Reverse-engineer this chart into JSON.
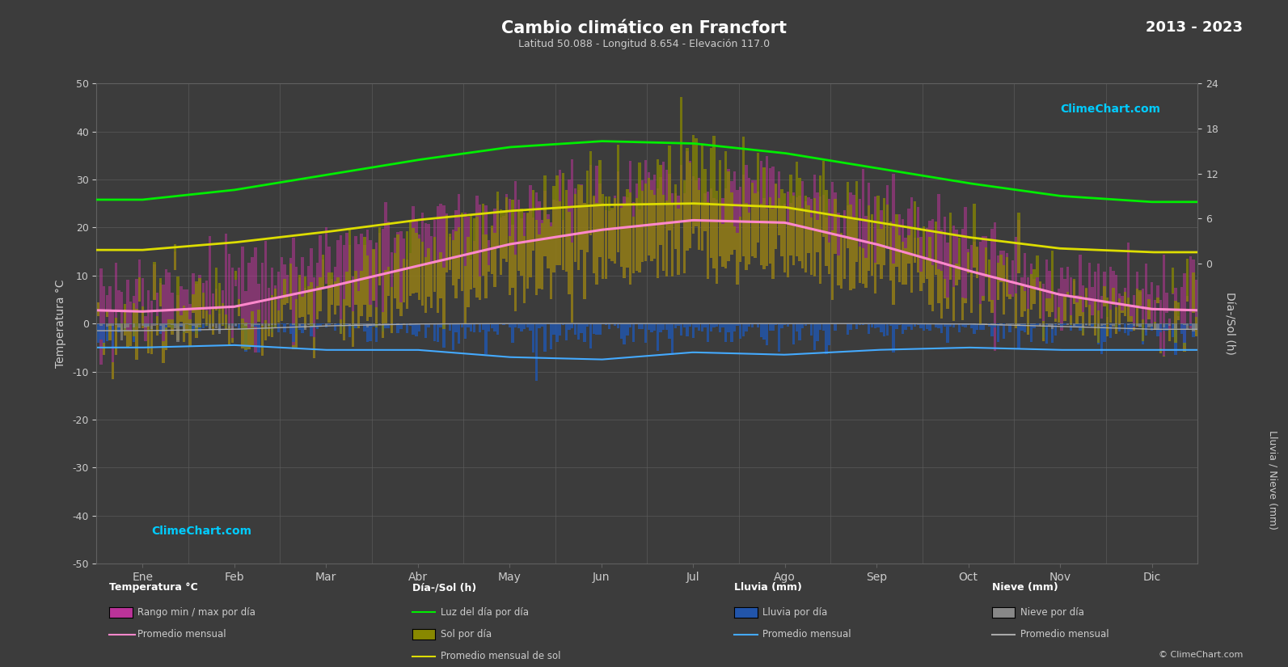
{
  "title": "Cambio climático en Francfort",
  "subtitle": "Latitud 50.088 - Longitud 8.654 - Elevación 117.0",
  "year_range": "2013 - 2023",
  "months": [
    "Ene",
    "Feb",
    "Mar",
    "Abr",
    "May",
    "Jun",
    "Jul",
    "Ago",
    "Sep",
    "Oct",
    "Nov",
    "Dic"
  ],
  "background_color": "#3c3c3c",
  "plot_bg_color": "#3c3c3c",
  "days_per_month": [
    31,
    28,
    31,
    30,
    31,
    30,
    31,
    31,
    30,
    31,
    30,
    31
  ],
  "temp_avg_monthly": [
    2.5,
    3.5,
    7.5,
    12.0,
    16.5,
    19.5,
    21.5,
    21.0,
    16.5,
    11.0,
    6.0,
    3.0
  ],
  "temp_min_avg": [
    -1.5,
    -0.5,
    2.5,
    6.0,
    10.0,
    13.0,
    15.0,
    14.5,
    11.0,
    7.0,
    3.0,
    0.5
  ],
  "temp_max_avg": [
    6.0,
    8.0,
    13.0,
    18.0,
    23.0,
    26.0,
    28.0,
    28.0,
    22.5,
    16.0,
    9.5,
    6.0
  ],
  "daylight_avg": [
    8.5,
    9.8,
    11.8,
    13.8,
    15.5,
    16.3,
    16.0,
    14.7,
    12.7,
    10.7,
    9.0,
    8.2
  ],
  "sunshine_avg": [
    1.8,
    2.8,
    4.2,
    5.8,
    7.0,
    7.8,
    8.0,
    7.5,
    5.5,
    3.5,
    2.0,
    1.5
  ],
  "rain_daily_avg_mm": [
    1.8,
    1.5,
    1.7,
    1.9,
    2.5,
    2.8,
    2.2,
    2.4,
    2.0,
    1.9,
    2.0,
    2.0
  ],
  "snow_daily_avg_mm": [
    1.5,
    1.2,
    0.5,
    0.1,
    0.0,
    0.0,
    0.0,
    0.0,
    0.0,
    0.1,
    0.6,
    1.2
  ],
  "rain_monthly_avg_line": [
    -5.0,
    -4.5,
    -5.5,
    -5.5,
    -7.0,
    -7.5,
    -6.0,
    -6.5,
    -5.5,
    -5.0,
    -5.5,
    -5.5
  ],
  "snow_monthly_avg_line": [
    -1.5,
    -1.2,
    -0.5,
    -0.1,
    0.0,
    0.0,
    0.0,
    0.0,
    0.0,
    -0.1,
    -0.6,
    -1.2
  ],
  "grid_color": "#606060",
  "text_color": "#cccccc",
  "temp_bar_color": "#cc44aa",
  "sunshine_bar_color_top": "#999900",
  "sunshine_bar_color_bot": "#555500",
  "temp_line_color": "#ff88dd",
  "daylight_line_color": "#00ee00",
  "sunshine_line_color": "#dddd00",
  "rain_bar_color": "#3366aa",
  "snow_bar_color": "#888888",
  "rain_line_color": "#44aaff",
  "snow_line_color": "#aaaaaa"
}
